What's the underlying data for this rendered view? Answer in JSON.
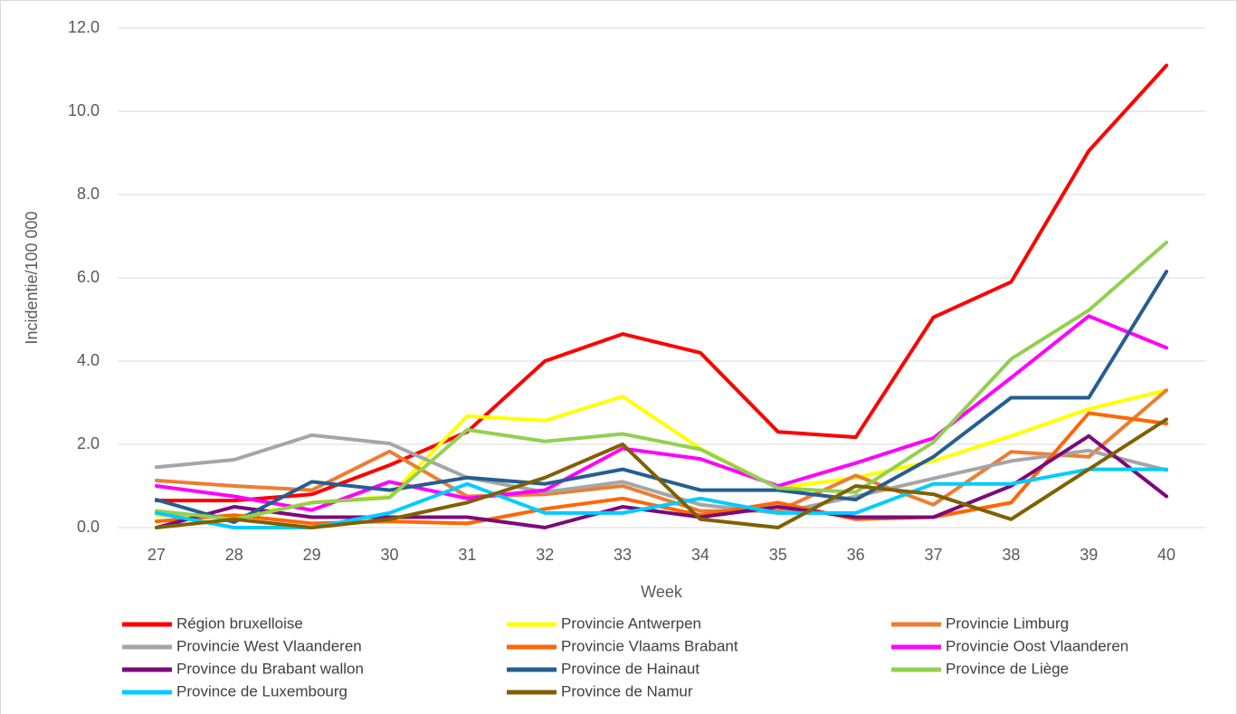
{
  "chart_data": {
    "type": "line",
    "y_label": "Incidentie/100 000",
    "x_label": "Week",
    "categories": [
      "27",
      "28",
      "29",
      "30",
      "31",
      "32",
      "33",
      "34",
      "35",
      "36",
      "37",
      "38",
      "39",
      "40"
    ],
    "ylim": [
      0,
      12
    ],
    "yticks": [
      {
        "value": 0,
        "label": "0.0"
      },
      {
        "value": 2,
        "label": "2.0"
      },
      {
        "value": 4,
        "label": "4.0"
      },
      {
        "value": 6,
        "label": "6.0"
      },
      {
        "value": 8,
        "label": "8.0"
      },
      {
        "value": 10,
        "label": "10.0"
      },
      {
        "value": 12,
        "label": "12.0"
      }
    ],
    "grid": true,
    "legend": "bottom",
    "series": [
      {
        "name": "Région bruxelloise",
        "color": "#ff0000",
        "values": [
          0.65,
          0.65,
          0.8,
          1.5,
          2.3,
          4.0,
          4.65,
          4.2,
          2.3,
          2.17,
          5.05,
          5.9,
          9.05,
          11.1
        ]
      },
      {
        "name": "Provincie Antwerpen",
        "color": "#ffff00",
        "values": [
          0.3,
          0.25,
          0.6,
          0.75,
          2.68,
          2.57,
          3.15,
          1.9,
          0.95,
          1.2,
          1.6,
          2.2,
          2.85,
          3.3
        ]
      },
      {
        "name": "Provincie Limburg",
        "color": "#ed7d31",
        "values": [
          1.13,
          1.0,
          0.9,
          1.83,
          0.75,
          0.8,
          1.0,
          0.4,
          0.4,
          1.25,
          0.55,
          1.82,
          1.7,
          3.3
        ]
      },
      {
        "name": "Provincie West Vlaanderen",
        "color": "#a5a5a5",
        "values": [
          1.45,
          1.63,
          2.22,
          2.02,
          1.2,
          0.85,
          1.1,
          0.55,
          0.35,
          0.75,
          1.18,
          1.6,
          1.85,
          1.38
        ]
      },
      {
        "name": "Provincie Vlaams Brabant",
        "color": "#ff6600",
        "values": [
          0.15,
          0.3,
          0.1,
          0.15,
          0.1,
          0.45,
          0.7,
          0.3,
          0.6,
          0.2,
          0.25,
          0.6,
          2.75,
          2.5
        ]
      },
      {
        "name": "Provincie Oost Vlaanderen",
        "color": "#ff00ff",
        "values": [
          1.0,
          0.75,
          0.42,
          1.1,
          0.7,
          0.9,
          1.9,
          1.65,
          1.0,
          1.55,
          2.15,
          3.6,
          5.08,
          4.32
        ]
      },
      {
        "name": "Province du Brabant wallon",
        "color": "#7b0a7b",
        "values": [
          0.0,
          0.5,
          0.25,
          0.25,
          0.25,
          0.0,
          0.5,
          0.25,
          0.5,
          0.25,
          0.25,
          1.0,
          2.2,
          0.75
        ]
      },
      {
        "name": "Province de Hainaut",
        "color": "#255e91",
        "values": [
          0.67,
          0.13,
          1.1,
          0.9,
          1.2,
          1.05,
          1.4,
          0.9,
          0.9,
          0.67,
          1.7,
          3.12,
          3.12,
          6.15
        ]
      },
      {
        "name": "Province de Liège",
        "color": "#92d050",
        "values": [
          0.4,
          0.2,
          0.6,
          0.72,
          2.35,
          2.07,
          2.25,
          1.88,
          0.95,
          0.85,
          2.05,
          4.05,
          5.22,
          6.85
        ]
      },
      {
        "name": "Province de Luxembourg",
        "color": "#00ccff",
        "values": [
          0.35,
          0.0,
          0.0,
          0.35,
          1.05,
          0.35,
          0.35,
          0.7,
          0.35,
          0.35,
          1.05,
          1.05,
          1.4,
          1.4
        ]
      },
      {
        "name": "Province de Namur",
        "color": "#806000",
        "values": [
          0.0,
          0.2,
          0.0,
          0.2,
          0.6,
          1.2,
          2.0,
          0.2,
          0.0,
          1.0,
          0.8,
          0.2,
          1.4,
          2.6
        ]
      }
    ]
  }
}
